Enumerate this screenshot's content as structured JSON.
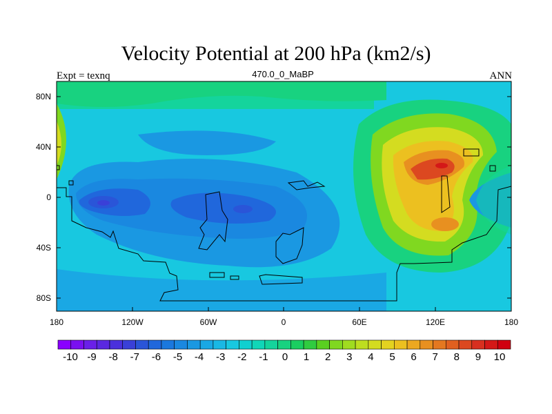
{
  "title": "Velocity Potential at 200 hPa (km2/s)",
  "subtitle_left": "Expt = texnq",
  "subtitle_center": "470.0_0_MaBP",
  "subtitle_right": "ANN",
  "y_ticks": [
    {
      "value": 80,
      "label": "80N"
    },
    {
      "value": 40,
      "label": "40N"
    },
    {
      "value": 0,
      "label": "0"
    },
    {
      "value": -40,
      "label": "40S"
    },
    {
      "value": -80,
      "label": "80S"
    }
  ],
  "x_ticks": [
    {
      "value": -180,
      "label": "180"
    },
    {
      "value": -120,
      "label": "120W"
    },
    {
      "value": -60,
      "label": "60W"
    },
    {
      "value": 0,
      "label": "0"
    },
    {
      "value": 60,
      "label": "60E"
    },
    {
      "value": 120,
      "label": "120E"
    },
    {
      "value": 180,
      "label": "180"
    }
  ],
  "colorbar": {
    "labels": [
      "-10",
      "-9",
      "-8",
      "-7",
      "-6",
      "-5",
      "-4",
      "-3",
      "-2",
      "-1",
      "0",
      "1",
      "2",
      "3",
      "4",
      "5",
      "6",
      "7",
      "8",
      "9",
      "10"
    ],
    "colors": [
      "#8a00ff",
      "#7a10f0",
      "#6a20e8",
      "#5a28e0",
      "#4a30dc",
      "#3a40d8",
      "#2a55d8",
      "#2067dc",
      "#1a78de",
      "#1a88e0",
      "#1a98e2",
      "#1aa8e4",
      "#1ab8e4",
      "#18c8e0",
      "#10d0d0",
      "#10d6b8",
      "#14d49c",
      "#18d280",
      "#1ace60",
      "#30cc40",
      "#5ad020",
      "#80d820",
      "#a0dc20",
      "#bede20",
      "#d4dc20",
      "#e4d220",
      "#ecc020",
      "#eca820",
      "#e89020",
      "#e47820",
      "#e06020",
      "#dc4820",
      "#d83020",
      "#d41818",
      "#d00010"
    ]
  },
  "map_data": {
    "type": "contour_map",
    "variable": "Velocity Potential",
    "level": "200 hPa",
    "units": "km2/s",
    "lon_range": [
      -180,
      180
    ],
    "lat_range": [
      -90,
      90
    ],
    "value_range": [
      -10,
      10
    ],
    "features": [
      {
        "name": "maximum",
        "lon": 120,
        "lat": 22,
        "value": 9.5
      },
      {
        "name": "secondary-maximum",
        "lon": 125,
        "lat": -22,
        "value": 7
      },
      {
        "name": "minimum",
        "lon": -140,
        "lat": -5,
        "value": -7
      },
      {
        "name": "minimum",
        "lon": -30,
        "lat": -10,
        "value": -6
      }
    ]
  }
}
